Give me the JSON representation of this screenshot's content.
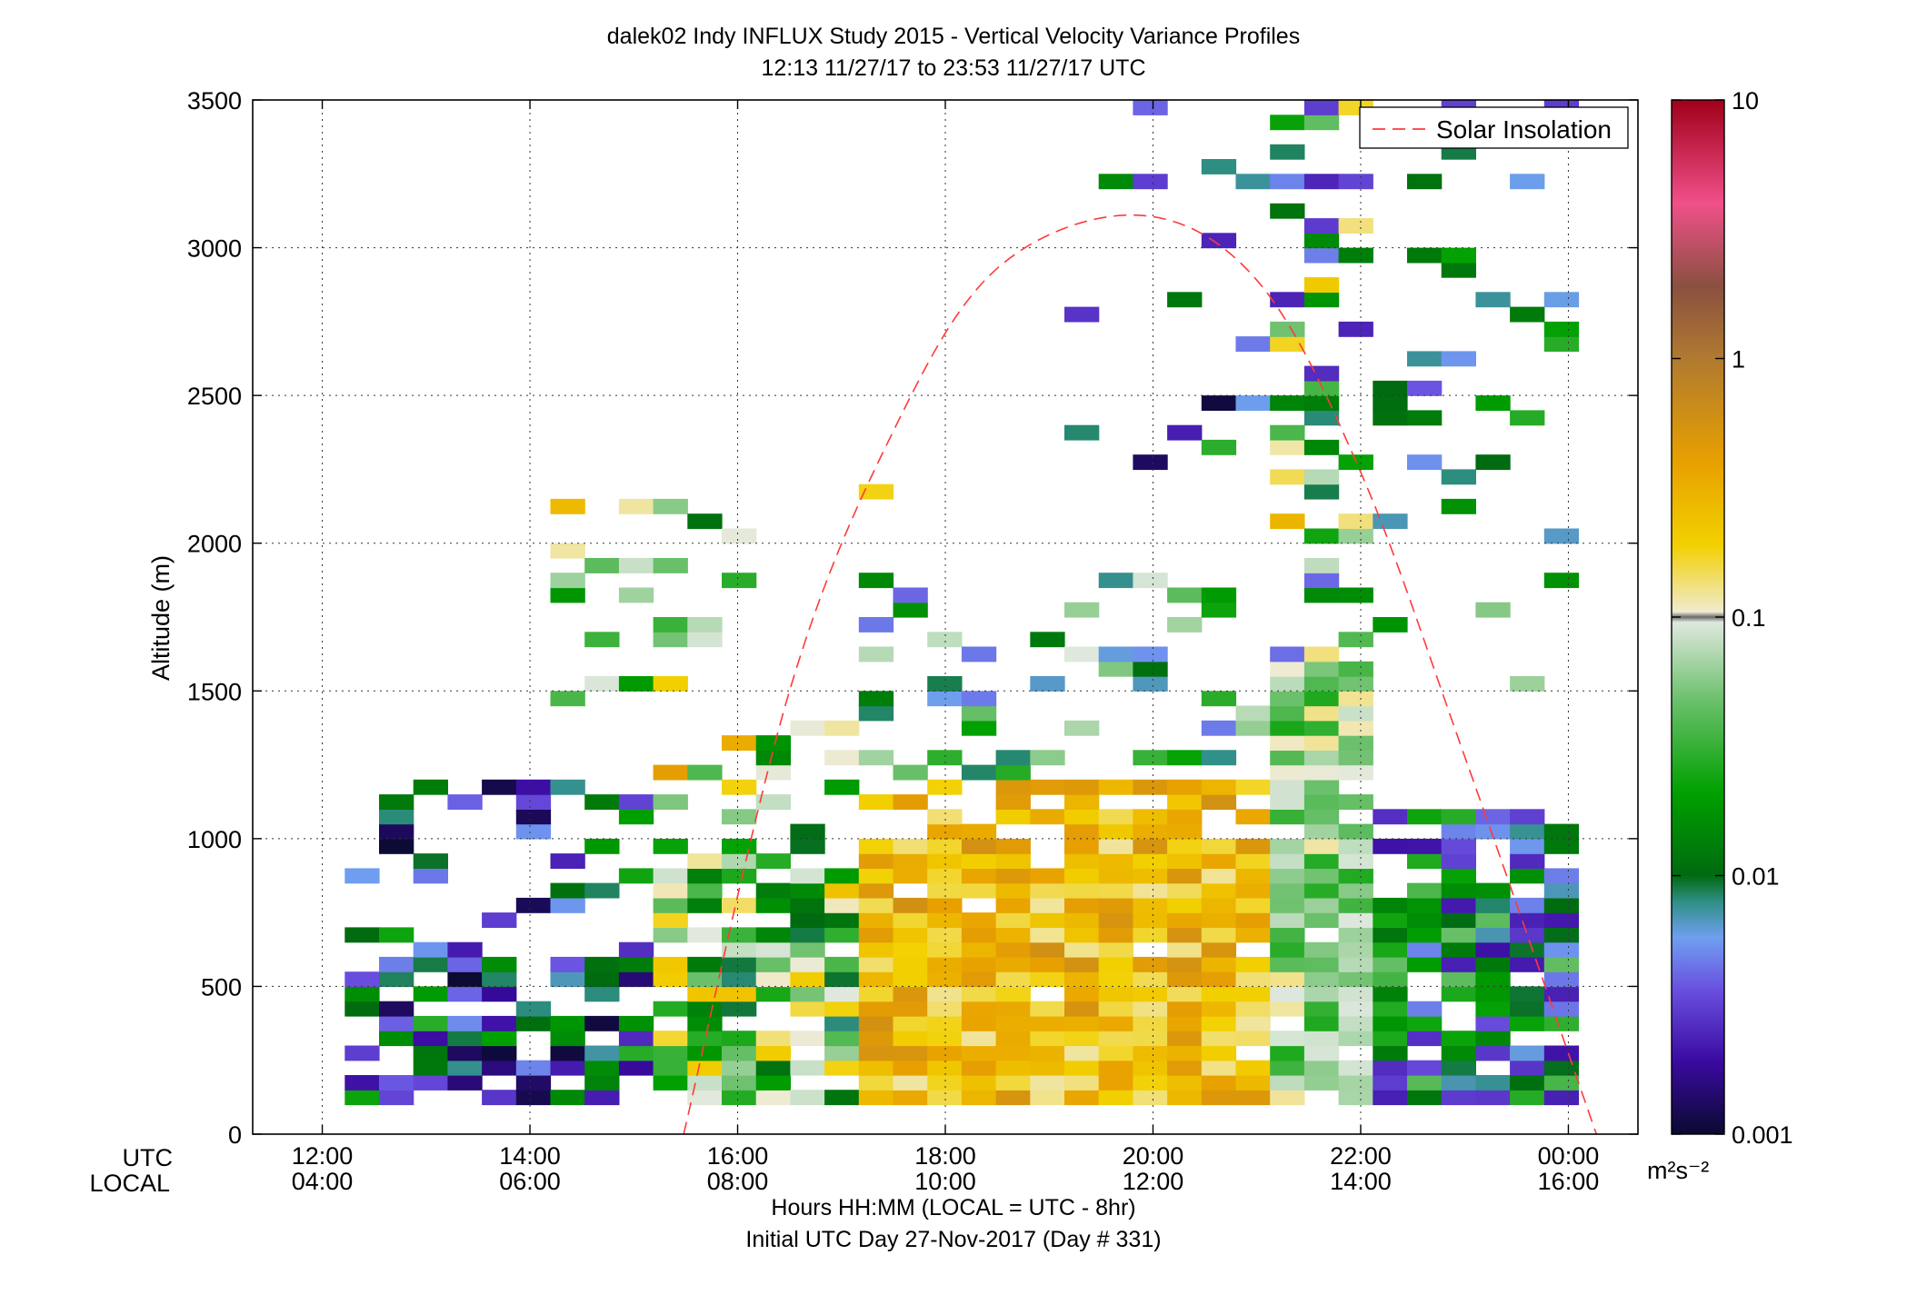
{
  "title": "dalek02 Indy INFLUX Study 2015 - Vertical Velocity Variance Profiles",
  "subtitle": "12:13 11/27/17 to 23:53 11/27/17  UTC",
  "xlabel": "Hours HH:MM  (LOCAL = UTC - 8hr)",
  "xlabel2": "Initial UTC Day 27-Nov-2017 (Day # 331)",
  "ylabel": "Altitude (m)",
  "row_label_utc": "UTC",
  "row_label_local": "LOCAL",
  "colorbar_unit": "m²s⁻²",
  "chart_data": {
    "type": "heatmap",
    "title": "dalek02 Indy INFLUX Study 2015 - Vertical Velocity Variance Profiles",
    "subtitle": "12:13 11/27/17 to 23:53 11/27/17  UTC",
    "xlabel": "Hours HH:MM  (LOCAL = UTC - 8hr)",
    "ylabel": "Altitude (m)",
    "xlim_hours_utc": [
      11.33,
      24.67
    ],
    "ylim": [
      0,
      3500
    ],
    "grid": true,
    "x_ticks": [
      {
        "utc": "12:00",
        "local": "04:00",
        "hour": 12
      },
      {
        "utc": "14:00",
        "local": "06:00",
        "hour": 14
      },
      {
        "utc": "16:00",
        "local": "08:00",
        "hour": 16
      },
      {
        "utc": "18:00",
        "local": "10:00",
        "hour": 18
      },
      {
        "utc": "20:00",
        "local": "12:00",
        "hour": 20
      },
      {
        "utc": "22:00",
        "local": "14:00",
        "hour": 22
      },
      {
        "utc": "00:00",
        "local": "16:00",
        "hour": 24
      }
    ],
    "y_ticks": [
      0,
      500,
      1000,
      1500,
      2000,
      2500,
      3000,
      3500
    ],
    "colorbar": {
      "scale": "log",
      "range": [
        0.001,
        10
      ],
      "ticks": [
        {
          "value": 10,
          "label": "10"
        },
        {
          "value": 1,
          "label": "1"
        },
        {
          "value": 0.1,
          "label": "0.1"
        },
        {
          "value": 0.01,
          "label": "0.01"
        },
        {
          "value": 0.001,
          "label": "0.001"
        }
      ],
      "unit": "m^2 s^-2"
    },
    "legend": {
      "entries": [
        "Solar Insolation"
      ],
      "position": "top-right"
    },
    "solar_insolation": {
      "style": "dashed red",
      "x": [
        15.48,
        16.5,
        17.5,
        18.5,
        19.85,
        21.0,
        22.0,
        23.0,
        24.27
      ],
      "y": [
        0,
        1500,
        2380,
        2930,
        3110,
        2890,
        2240,
        1280,
        0
      ]
    },
    "variance_cells": {
      "description": "Time-height profile of vertical velocity variance (m^2 s^-2), log colour scale 0.001-10. Values approximate by region.",
      "time_step_hours": 0.33,
      "altitude_step_m": 50,
      "regions": [
        {
          "time_utc": "12:13-15:00",
          "altitude_m": "100-1200",
          "variance": "0.001-0.03"
        },
        {
          "time_utc": "14:00-16:00",
          "altitude_m": "1200-2200",
          "variance": "0.01-0.5, sparse"
        },
        {
          "time_utc": "16:00-17:00",
          "altitude_m": "100-1400",
          "variance": "0.01-0.3"
        },
        {
          "time_utc": "17:00-21:00",
          "altitude_m": "100-1200",
          "variance": "0.15-0.6"
        },
        {
          "time_utc": "19:00-21:00",
          "altitude_m": "1300-1900",
          "variance": "0.005-0.1, sparse"
        },
        {
          "time_utc": "19:00-21:00",
          "altitude_m": "2200-3500",
          "variance": "0.001-0.03, sparse"
        },
        {
          "time_utc": "21:00-22:00",
          "altitude_m": "100-1600",
          "variance": "0.03-0.12"
        },
        {
          "time_utc": "21:00-22:00",
          "altitude_m": "1600-3400",
          "variance": "0.002-0.3, sparse"
        },
        {
          "time_utc": "22:00-23:53",
          "altitude_m": "100-1100",
          "variance": "0.002-0.05"
        },
        {
          "time_utc": "22:00-23:53",
          "altitude_m": "2000-3500",
          "variance": "0.003-0.03, sparse"
        }
      ]
    }
  }
}
